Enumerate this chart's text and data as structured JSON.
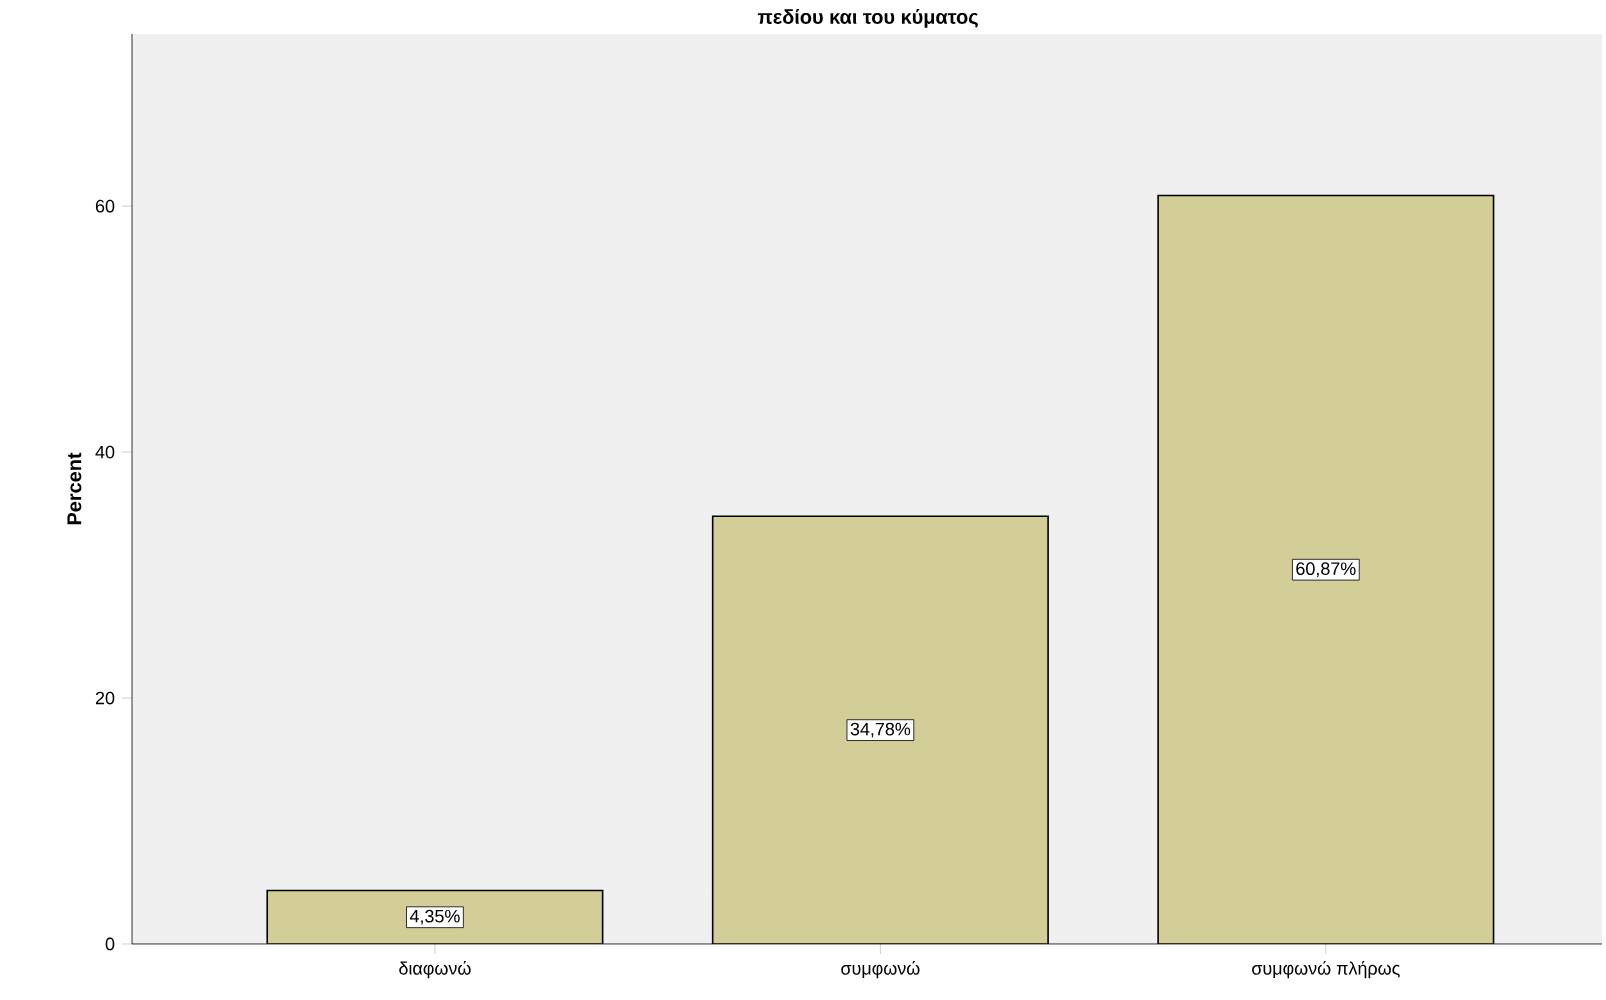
{
  "chart_data": {
    "type": "bar",
    "title": "πεδίου και του κύματος",
    "ylabel": "Percent",
    "categories": [
      "διαφωνώ",
      "συμφωνώ",
      "συμφωνώ πλήρως"
    ],
    "values": [
      4.35,
      34.78,
      60.87
    ],
    "value_labels": [
      "4,35%",
      "34,78%",
      "60,87%"
    ],
    "color": "#d3ce97",
    "ylim": [
      0,
      74
    ],
    "yticks": [
      0,
      20,
      40,
      60
    ],
    "grid": false
  }
}
